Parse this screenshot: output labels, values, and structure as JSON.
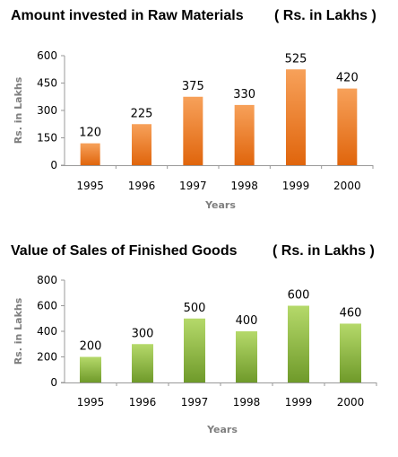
{
  "chart_data": [
    {
      "type": "bar",
      "title": "Amount invested in Raw Materials",
      "subtitle": "( Rs. in Lakhs )",
      "xlabel": "Years",
      "ylabel": "Rs. in Lakhs",
      "categories": [
        "1995",
        "1996",
        "1997",
        "1998",
        "1999",
        "2000"
      ],
      "values": [
        120,
        225,
        375,
        330,
        525,
        420
      ],
      "ylim": [
        0,
        600
      ],
      "yticks": [
        "0",
        "150",
        "300",
        "450",
        "600"
      ],
      "data_labels": [
        "120",
        "225",
        "375",
        "330",
        "525",
        "420"
      ],
      "color_top": "#f7a15a",
      "color_bottom": "#e0650c",
      "grid": false
    },
    {
      "type": "bar",
      "title": "Value of Sales of Finished Goods",
      "subtitle": "( Rs. in Lakhs )",
      "xlabel": "Years",
      "ylabel": "Rs. in Lakhs",
      "categories": [
        "1995",
        "1996",
        "1997",
        "1998",
        "1999",
        "2000"
      ],
      "values": [
        200,
        300,
        500,
        400,
        600,
        460
      ],
      "ylim": [
        0,
        800
      ],
      "yticks": [
        "0",
        "200",
        "400",
        "600",
        "800"
      ],
      "data_labels": [
        "200",
        "300",
        "500",
        "400",
        "600",
        "460"
      ],
      "color_top": "#b5d96a",
      "color_bottom": "#6f9a2a",
      "grid": false
    }
  ]
}
